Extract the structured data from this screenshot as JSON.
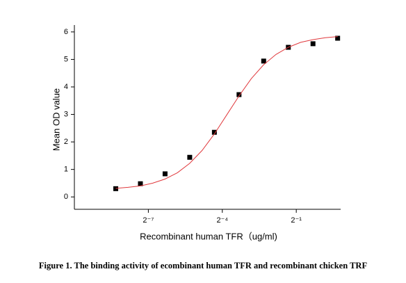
{
  "chart_data": {
    "type": "scatter",
    "xlabel": "Recombinant human  TFR（ug/ml)",
    "ylabel": "Mean OD value",
    "xscale": "log2",
    "xlim": [
      0.0009765625,
      1.7411
    ],
    "ylim": [
      -0.45,
      6.25
    ],
    "xticks": [
      {
        "value": 0.0078125,
        "label": "2⁻⁷"
      },
      {
        "value": 0.0625,
        "label": "2⁻⁴"
      },
      {
        "value": 0.5,
        "label": "2⁻¹"
      }
    ],
    "yticks": [
      0,
      1,
      2,
      3,
      4,
      5,
      6
    ],
    "series": [
      {
        "type": "scatter",
        "color": "#000000",
        "x": [
          0.003125,
          0.00625,
          0.0125,
          0.025,
          0.05,
          0.1,
          0.2,
          0.4,
          0.8,
          1.6
        ],
        "values": [
          0.3,
          0.48,
          0.84,
          1.44,
          2.35,
          3.72,
          4.94,
          5.44,
          5.57,
          5.77
        ]
      },
      {
        "type": "line",
        "color": "#e0383c",
        "x": [
          0.003125,
          0.00442,
          0.00625,
          0.00884,
          0.0125,
          0.0177,
          0.025,
          0.0354,
          0.05,
          0.0707,
          0.1,
          0.1414,
          0.2,
          0.2828,
          0.4,
          0.5657,
          0.8,
          1.1314,
          1.6
        ],
        "values": [
          0.31,
          0.35,
          0.4,
          0.5,
          0.65,
          0.88,
          1.22,
          1.69,
          2.29,
          2.98,
          3.67,
          4.3,
          4.81,
          5.18,
          5.44,
          5.62,
          5.72,
          5.79,
          5.83
        ]
      }
    ]
  },
  "caption": "Figure 1. The binding activity of ecombinant human TFR and recombinant chicken TRF"
}
